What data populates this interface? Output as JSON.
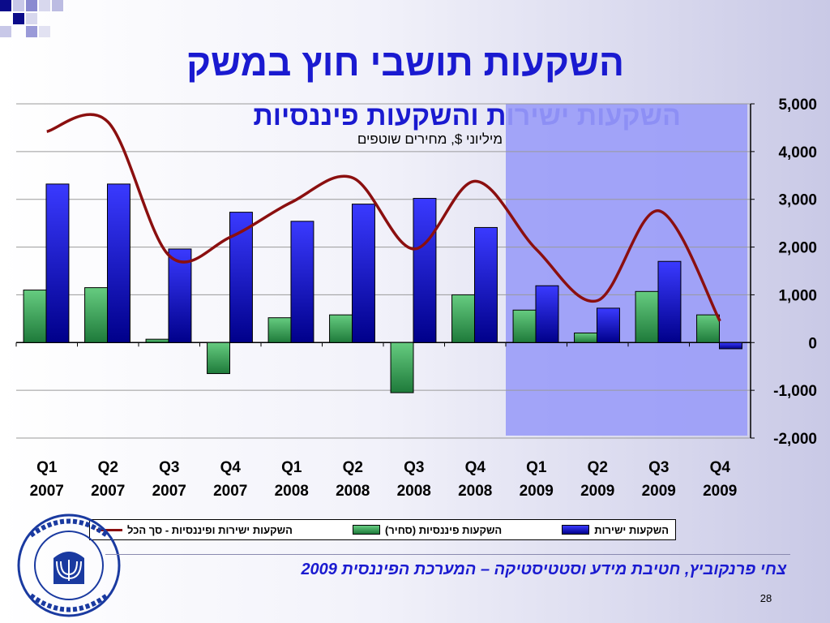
{
  "slide": {
    "title": "השקעות תושבי חוץ במשק",
    "subtitle": "השקעות ישירות והשקעות פיננסיות",
    "units": "מיליוני $, מחירים שוטפים",
    "footer": "צחי פרנקוביץ, חטיבת מידע וסטטיסטיקה – המערכת הפיננסית 2009",
    "page_number": "28",
    "logo_text": "בנק ישראל BANK OF ISRAEL"
  },
  "legend": {
    "direct_label": "השקעות ישירות",
    "financial_label": "השקעות פיננסיות (סחיר)",
    "total_label": "השקעות ישירות ופיננסיות - סך הכל"
  },
  "colors": {
    "direct": "#1010d8",
    "financial": "#2e8b4a",
    "total": "#8b0f0f",
    "highlight": "#9a9cf8",
    "title": "#1a1ad0"
  },
  "chart_data": {
    "type": "bar",
    "categories": [
      [
        "Q1",
        "2007"
      ],
      [
        "Q2",
        "2007"
      ],
      [
        "Q3",
        "2007"
      ],
      [
        "Q4",
        "2007"
      ],
      [
        "Q1",
        "2008"
      ],
      [
        "Q2",
        "2008"
      ],
      [
        "Q3",
        "2008"
      ],
      [
        "Q4",
        "2008"
      ],
      [
        "Q1",
        "2009"
      ],
      [
        "Q2",
        "2009"
      ],
      [
        "Q3",
        "2009"
      ],
      [
        "Q4",
        "2009"
      ]
    ],
    "series": [
      {
        "name": "השקעות פיננסיות (סחיר)",
        "kind": "bar",
        "values": [
          1100,
          1150,
          70,
          -650,
          520,
          580,
          -1050,
          1000,
          680,
          200,
          1070,
          580
        ]
      },
      {
        "name": "השקעות ישירות",
        "kind": "bar",
        "values": [
          3320,
          3320,
          1960,
          2730,
          2540,
          2900,
          3020,
          2410,
          1190,
          720,
          1700,
          -130
        ]
      },
      {
        "name": "השקעות ישירות ופיננסיות - סך הכל",
        "kind": "line",
        "values": [
          4420,
          4620,
          1820,
          2210,
          2940,
          3450,
          1960,
          3380,
          1950,
          880,
          2760,
          450
        ]
      }
    ],
    "ylim": [
      -2000,
      5000
    ],
    "yticks": [
      5000,
      4000,
      3000,
      2000,
      1000,
      0,
      -1000,
      -2000
    ],
    "ytick_labels": [
      "5,000",
      "4,000",
      "3,000",
      "2,000",
      "1,000",
      "0",
      "-1,000",
      "-2,000"
    ],
    "highlight_categories": [
      "Q1 2009",
      "Q2 2009",
      "Q3 2009",
      "Q4 2009"
    ],
    "grid": true,
    "legend_position": "bottom"
  }
}
